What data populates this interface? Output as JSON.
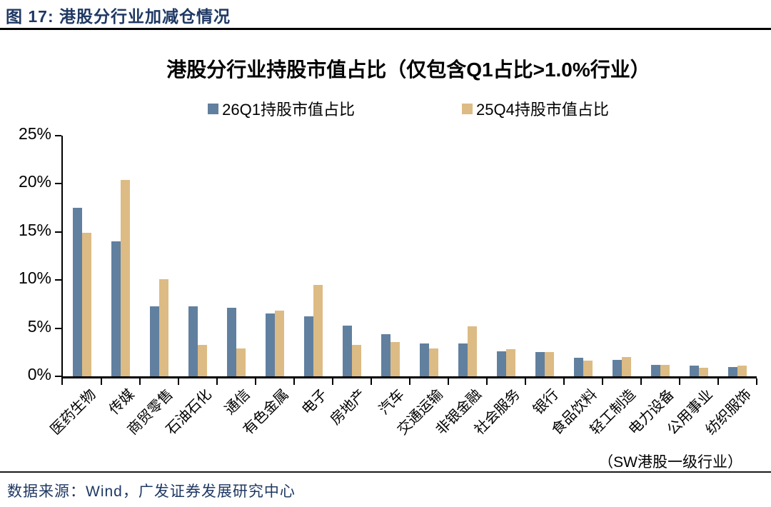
{
  "header": {
    "title": "图 17: 港股分行业加减仓情况"
  },
  "chart": {
    "title": "港股分行业持股市值占比（仅包含Q1占比>1.0%行业）",
    "note": "（SW港股一级行业）"
  },
  "chart_data": {
    "type": "bar",
    "title": "港股分行业持股市值占比（仅包含Q1占比>1.0%行业）",
    "categories": [
      "医药生物",
      "传媒",
      "商贸零售",
      "石油石化",
      "通信",
      "有色金属",
      "电子",
      "房地产",
      "汽车",
      "交通运输",
      "非银金融",
      "社会服务",
      "银行",
      "食品饮料",
      "轻工制造",
      "电力设备",
      "公用事业",
      "纺织服饰"
    ],
    "series": [
      {
        "name": "26Q1持股市值占比",
        "color": "#61809F",
        "values": [
          17.5,
          14.0,
          7.3,
          7.3,
          7.1,
          6.5,
          6.2,
          5.3,
          4.4,
          3.4,
          3.4,
          2.6,
          2.5,
          1.9,
          1.7,
          1.2,
          1.1,
          1.0
        ]
      },
      {
        "name": "25Q4持股市值占比",
        "color": "#DDBB84",
        "values": [
          14.9,
          20.4,
          10.1,
          3.3,
          2.9,
          6.8,
          9.5,
          3.3,
          3.6,
          2.9,
          5.2,
          2.8,
          2.5,
          1.6,
          2.0,
          1.2,
          0.9,
          1.1
        ]
      }
    ],
    "ylim": [
      0,
      25
    ],
    "yticks": [
      {
        "value": 0,
        "label": "0%"
      },
      {
        "value": 5,
        "label": "5%"
      },
      {
        "value": 10,
        "label": "10%"
      },
      {
        "value": 15,
        "label": "15%"
      },
      {
        "value": 20,
        "label": "20%"
      },
      {
        "value": 25,
        "label": "25%"
      }
    ],
    "grid": false,
    "legend_position": "top",
    "xlabel": "",
    "ylabel": ""
  },
  "footer": {
    "source": "数据来源：Wind，广发证券发展研究中心"
  },
  "colors": {
    "header_text": "#1F3864",
    "rule": "#000000",
    "axis": "#000000"
  }
}
